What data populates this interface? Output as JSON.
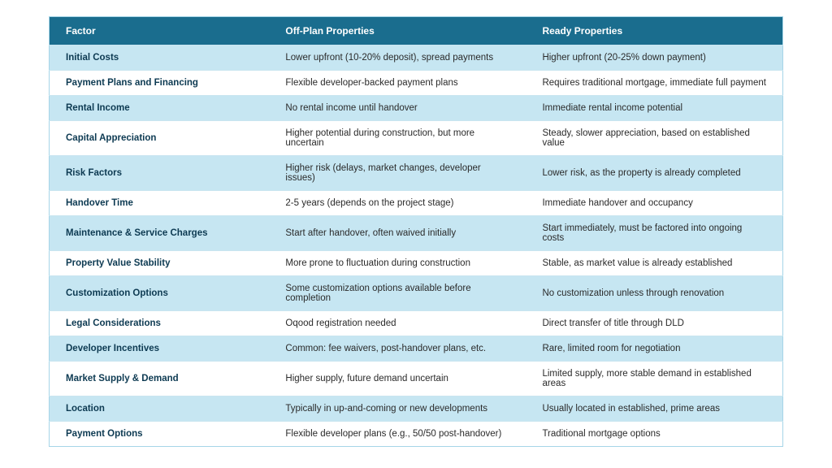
{
  "table": {
    "type": "table",
    "header_bg": "#1a6d8e",
    "header_fg": "#ffffff",
    "row_odd_bg": "#c6e6f2",
    "row_even_bg": "#ffffff",
    "text_color": "#2a2a2a",
    "factor_color": "#0d3a52",
    "border_color": "#a6d5e8",
    "columns": [
      {
        "key": "factor",
        "label": "Factor",
        "width": "30%"
      },
      {
        "key": "off",
        "label": "Off-Plan Properties",
        "width": "35%"
      },
      {
        "key": "ready",
        "label": "Ready Properties",
        "width": "35%"
      }
    ],
    "rows": [
      {
        "factor": "Initial Costs",
        "off": "Lower upfront (10-20% deposit), spread payments",
        "ready": "Higher upfront (20-25% down payment)"
      },
      {
        "factor": "Payment Plans and Financing",
        "off": "Flexible developer-backed payment plans",
        "ready": "Requires traditional mortgage, immediate full payment"
      },
      {
        "factor": "Rental Income",
        "off": "No rental income until handover",
        "ready": "Immediate rental income potential"
      },
      {
        "factor": "Capital Appreciation",
        "off": "Higher potential during construction, but more uncertain",
        "ready": "Steady, slower appreciation, based on established value"
      },
      {
        "factor": "Risk Factors",
        "off": "Higher risk (delays, market changes, developer issues)",
        "ready": "Lower risk, as the property is already completed"
      },
      {
        "factor": "Handover Time",
        "off": "2-5 years (depends on the project stage)",
        "ready": "Immediate handover and occupancy"
      },
      {
        "factor": "Maintenance & Service Charges",
        "off": "Start after handover, often waived initially",
        "ready": "Start immediately, must be factored into ongoing costs"
      },
      {
        "factor": "Property Value Stability",
        "off": "More prone to fluctuation during construction",
        "ready": "Stable, as market value is already established"
      },
      {
        "factor": "Customization Options",
        "off": "Some customization options available before completion",
        "ready": "No customization unless through renovation"
      },
      {
        "factor": "Legal Considerations",
        "off": "Oqood registration needed",
        "ready": "Direct transfer of title through DLD"
      },
      {
        "factor": "Developer Incentives",
        "off": "Common: fee waivers, post-handover plans, etc.",
        "ready": "Rare, limited room for negotiation"
      },
      {
        "factor": "Market Supply & Demand",
        "off": "Higher supply, future demand uncertain",
        "ready": "Limited supply, more stable demand in established areas"
      },
      {
        "factor": "Location",
        "off": "Typically in up-and-coming or new developments",
        "ready": "Usually located in established, prime areas"
      },
      {
        "factor": "Payment Options",
        "off": "Flexible developer plans (e.g., 50/50 post-handover)",
        "ready": "Traditional mortgage options"
      }
    ]
  }
}
